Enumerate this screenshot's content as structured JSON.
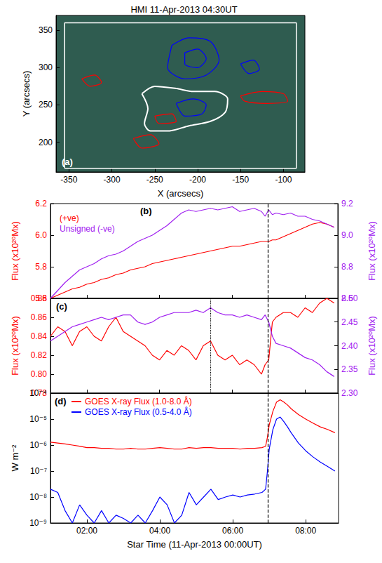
{
  "chart_data": [
    {
      "type": "contour",
      "title": "HMI 11-Apr-2013 04:30UT",
      "panel_label": "(a)",
      "xlabel": "X (arcsecs)",
      "ylabel": "Y (arcsecs)",
      "xlim": [
        -365,
        -75
      ],
      "xticks": [
        -350,
        -300,
        -250,
        -200,
        -150,
        -100
      ],
      "ylim": [
        160,
        370
      ],
      "yticks": [
        200,
        250,
        300,
        350
      ],
      "grid": false,
      "box": {
        "color": "#ffffff",
        "points": [
          [
            -355,
            165
          ],
          [
            -85,
            165
          ],
          [
            -85,
            360
          ],
          [
            -355,
            360
          ],
          [
            -355,
            165
          ]
        ]
      },
      "contours": [
        {
          "color": "#ffffff",
          "points": [
            [
              -265,
              265
            ],
            [
              -250,
              275
            ],
            [
              -225,
              272
            ],
            [
              -205,
              268
            ],
            [
              -180,
              268
            ],
            [
              -165,
              258
            ],
            [
              -168,
              240
            ],
            [
              -185,
              228
            ],
            [
              -210,
              222
            ],
            [
              -235,
              215
            ],
            [
              -255,
              215
            ],
            [
              -262,
              225
            ],
            [
              -258,
              245
            ],
            [
              -265,
              265
            ]
          ]
        },
        {
          "color": "#0000ff",
          "points": [
            [
              -230,
              330
            ],
            [
              -210,
              340
            ],
            [
              -185,
              335
            ],
            [
              -175,
              310
            ],
            [
              -190,
              290
            ],
            [
              -215,
              285
            ],
            [
              -235,
              300
            ],
            [
              -230,
              330
            ]
          ]
        },
        {
          "color": "#0000ff",
          "points": [
            [
              -215,
              320
            ],
            [
              -200,
              325
            ],
            [
              -190,
              312
            ],
            [
              -200,
              300
            ],
            [
              -215,
              305
            ],
            [
              -215,
              320
            ]
          ]
        },
        {
          "color": "#0000ff",
          "points": [
            [
              -225,
              252
            ],
            [
              -205,
              258
            ],
            [
              -190,
              250
            ],
            [
              -195,
              238
            ],
            [
              -215,
              235
            ],
            [
              -225,
              252
            ]
          ]
        },
        {
          "color": "#0000ff",
          "points": [
            [
              -150,
              305
            ],
            [
              -135,
              310
            ],
            [
              -128,
              298
            ],
            [
              -140,
              292
            ],
            [
              -150,
              305
            ]
          ]
        },
        {
          "color": "#ff0000",
          "points": [
            [
              -150,
              262
            ],
            [
              -125,
              268
            ],
            [
              -100,
              265
            ],
            [
              -95,
              255
            ],
            [
              -120,
              252
            ],
            [
              -145,
              255
            ],
            [
              -150,
              262
            ]
          ]
        },
        {
          "color": "#ff0000",
          "points": [
            [
              -335,
              285
            ],
            [
              -320,
              290
            ],
            [
              -312,
              280
            ],
            [
              -325,
              275
            ],
            [
              -335,
              285
            ]
          ]
        },
        {
          "color": "#ff0000",
          "points": [
            [
              -250,
              235
            ],
            [
              -230,
              238
            ],
            [
              -225,
              228
            ],
            [
              -245,
              225
            ],
            [
              -250,
              235
            ]
          ]
        },
        {
          "color": "#ff0000",
          "points": [
            [
              -275,
              205
            ],
            [
              -255,
              210
            ],
            [
              -245,
              198
            ],
            [
              -265,
              192
            ],
            [
              -275,
              205
            ]
          ]
        }
      ]
    },
    {
      "type": "line",
      "panel_label": "(b)",
      "legend": "upper left",
      "grid": false,
      "tick_labels": "y",
      "ylabel": "Flux (x10²⁰Mx)",
      "y2label": "Flux (x10²⁰Mx)",
      "xlim": [
        1.0,
        8.9
      ],
      "xticks": [
        {
          "value": 2,
          "label": "02:00"
        },
        {
          "value": 4,
          "label": "04:00"
        },
        {
          "value": 6,
          "label": "06:00"
        },
        {
          "value": 8,
          "label": "08:00"
        }
      ],
      "ylim": [
        5.6,
        6.2
      ],
      "yticks": [
        {
          "value": 5.6,
          "label": "5.6"
        },
        {
          "value": 5.8,
          "label": "5.8"
        },
        {
          "value": 6.0,
          "label": "6.0"
        },
        {
          "value": 6.2,
          "label": "6.2"
        }
      ],
      "y2lim": [
        8.6,
        9.2
      ],
      "y2ticks": [
        {
          "value": 8.6,
          "label": "8.6"
        },
        {
          "value": 8.8,
          "label": "8.8"
        },
        {
          "value": 9.0,
          "label": "9.0"
        },
        {
          "value": 9.2,
          "label": "9.2"
        }
      ],
      "markers": [
        {
          "x": 6.97,
          "line_style": "dashed"
        }
      ],
      "x": [
        1.0,
        1.2,
        1.4,
        1.6,
        1.8,
        2.0,
        2.2,
        2.4,
        2.6,
        2.8,
        3.0,
        3.2,
        3.4,
        3.6,
        3.8,
        4.0,
        4.2,
        4.4,
        4.6,
        4.8,
        5.0,
        5.2,
        5.4,
        5.6,
        5.8,
        6.0,
        6.2,
        6.4,
        6.6,
        6.8,
        6.9,
        7.0,
        7.1,
        7.2,
        7.4,
        7.6,
        7.8,
        8.0,
        8.2,
        8.4,
        8.6,
        8.8
      ],
      "series": [
        {
          "name": "(+ve)",
          "color": "#ff0000",
          "values": [
            5.6,
            5.62,
            5.64,
            5.66,
            5.67,
            5.69,
            5.7,
            5.72,
            5.73,
            5.75,
            5.76,
            5.78,
            5.79,
            5.8,
            5.82,
            5.83,
            5.84,
            5.85,
            5.86,
            5.87,
            5.88,
            5.89,
            5.9,
            5.91,
            5.92,
            5.93,
            5.93,
            5.94,
            5.95,
            5.96,
            5.96,
            5.96,
            5.97,
            5.97,
            5.99,
            6.01,
            6.03,
            6.05,
            6.07,
            6.08,
            6.07,
            6.05
          ]
        },
        {
          "name": "Unsigned (-ve)",
          "color": "#a020f0",
          "axis": "y2",
          "values": [
            8.6,
            8.65,
            8.7,
            8.74,
            8.78,
            8.8,
            8.82,
            8.85,
            8.87,
            8.88,
            8.9,
            8.93,
            8.96,
            8.98,
            9.0,
            9.03,
            9.06,
            9.1,
            9.14,
            9.16,
            9.15,
            9.16,
            9.17,
            9.16,
            9.17,
            9.18,
            9.15,
            9.16,
            9.17,
            9.15,
            9.12,
            9.16,
            9.13,
            9.14,
            9.13,
            9.14,
            9.12,
            9.12,
            9.1,
            9.09,
            9.07,
            9.05
          ]
        }
      ]
    },
    {
      "type": "line",
      "panel_label": "(c)",
      "grid": false,
      "tick_labels": "y",
      "ylabel": "Flux (x10²⁰Mx)",
      "y2label": "Flux (x10²⁰Mx)",
      "xlim": [
        1.0,
        8.9
      ],
      "xticks": [
        {
          "value": 2,
          "label": "02:00"
        },
        {
          "value": 4,
          "label": "04:00"
        },
        {
          "value": 6,
          "label": "06:00"
        },
        {
          "value": 8,
          "label": "08:00"
        }
      ],
      "ylim": [
        0.78,
        0.88
      ],
      "yticks": [
        0.78,
        {
          "value": 0.8,
          "label": "0.80"
        },
        0.82,
        0.84,
        0.86,
        0.88
      ],
      "y2lim": [
        2.3,
        2.5
      ],
      "y2ticks": [
        {
          "value": 2.3,
          "label": "2.30"
        },
        2.35,
        {
          "value": 2.4,
          "label": "2.40"
        },
        2.45,
        {
          "value": 2.5,
          "label": "2.50"
        }
      ],
      "markers": [
        {
          "x": 5.4,
          "line_style": "dotted"
        },
        {
          "x": 6.97,
          "line_style": "dashed"
        }
      ],
      "x": [
        1.0,
        1.2,
        1.4,
        1.6,
        1.8,
        2.0,
        2.2,
        2.4,
        2.6,
        2.8,
        3.0,
        3.2,
        3.4,
        3.6,
        3.8,
        4.0,
        4.2,
        4.4,
        4.6,
        4.8,
        5.0,
        5.2,
        5.4,
        5.6,
        5.8,
        6.0,
        6.2,
        6.4,
        6.6,
        6.8,
        6.9,
        7.0,
        7.1,
        7.2,
        7.4,
        7.6,
        7.8,
        8.0,
        8.2,
        8.4,
        8.6,
        8.8
      ],
      "series": [
        {
          "color": "#ff0000",
          "values": [
            0.84,
            0.85,
            0.845,
            0.83,
            0.845,
            0.85,
            0.84,
            0.835,
            0.85,
            0.86,
            0.845,
            0.84,
            0.835,
            0.83,
            0.82,
            0.815,
            0.825,
            0.82,
            0.83,
            0.825,
            0.815,
            0.83,
            0.835,
            0.82,
            0.815,
            0.82,
            0.81,
            0.815,
            0.81,
            0.8,
            0.81,
            0.815,
            0.855,
            0.86,
            0.865,
            0.865,
            0.86,
            0.87,
            0.865,
            0.875,
            0.88,
            0.875
          ]
        },
        {
          "color": "#a020f0",
          "axis": "y2",
          "values": [
            2.41,
            2.42,
            2.43,
            2.44,
            2.445,
            2.45,
            2.455,
            2.46,
            2.455,
            2.46,
            2.465,
            2.465,
            2.45,
            2.445,
            2.45,
            2.46,
            2.465,
            2.47,
            2.47,
            2.47,
            2.475,
            2.47,
            2.48,
            2.47,
            2.465,
            2.465,
            2.46,
            2.465,
            2.46,
            2.455,
            2.465,
            2.45,
            2.42,
            2.405,
            2.4,
            2.395,
            2.385,
            2.375,
            2.37,
            2.36,
            2.345,
            2.335
          ]
        }
      ]
    },
    {
      "type": "line",
      "panel_label": "(d)",
      "legend": "upper left",
      "grid": false,
      "log": "y",
      "xlabel": "Star Time (11-Apr-2013 00:00UT)",
      "ylabel": "W m⁻²",
      "xlim": [
        1.0,
        8.9
      ],
      "xticks": [
        {
          "value": 2,
          "label": "02:00"
        },
        {
          "value": 4,
          "label": "04:00"
        },
        {
          "value": 6,
          "label": "06:00"
        },
        {
          "value": 8,
          "label": "08:00"
        }
      ],
      "ylim": [
        1e-09,
        0.0001
      ],
      "yticks": [
        {
          "value": 1e-09,
          "label": "10⁻⁹"
        },
        {
          "value": 1e-08,
          "label": "10⁻⁸"
        },
        {
          "value": 1e-07,
          "label": "10⁻⁷"
        },
        {
          "value": 1e-06,
          "label": "10⁻⁶"
        },
        {
          "value": 1e-05,
          "label": "10⁻⁵"
        },
        {
          "value": 0.0001,
          "label": "10⁻⁴"
        }
      ],
      "markers": [
        {
          "x": 6.97,
          "line_style": "dashed"
        }
      ],
      "x": [
        1.0,
        1.2,
        1.4,
        1.6,
        1.8,
        2.0,
        2.2,
        2.4,
        2.6,
        2.8,
        3.0,
        3.2,
        3.4,
        3.6,
        3.8,
        4.0,
        4.2,
        4.4,
        4.6,
        4.8,
        5.0,
        5.2,
        5.4,
        5.6,
        5.8,
        6.0,
        6.2,
        6.4,
        6.6,
        6.8,
        6.9,
        6.95,
        7.0,
        7.1,
        7.2,
        7.3,
        7.4,
        7.5,
        7.6,
        7.8,
        8.0,
        8.2,
        8.4,
        8.6,
        8.8
      ],
      "series": [
        {
          "name": "GOES X-ray Flux (1.0-8.0 Å)",
          "color": "#ff0000",
          "values": [
            1.3e-06,
            1.2e-06,
            1.1e-06,
            1e-06,
            9e-07,
            8e-07,
            8e-07,
            7.5e-07,
            7.5e-07,
            7e-07,
            7e-07,
            7.5e-07,
            7e-07,
            7e-07,
            7.5e-07,
            8e-07,
            7.5e-07,
            7e-07,
            7e-07,
            8e-07,
            7.5e-07,
            8e-07,
            8e-07,
            7.5e-07,
            7.5e-07,
            7.5e-07,
            7e-07,
            7.5e-07,
            7.5e-07,
            8e-07,
            9e-07,
            2e-06,
            6e-06,
            2e-05,
            4.5e-05,
            5.5e-05,
            4.5e-05,
            3.5e-05,
            2.5e-05,
            1.5e-05,
            1e-05,
            7e-06,
            5e-06,
            4e-06,
            3e-06
          ]
        },
        {
          "name": "GOES X-ray Flux (0.5-4.0 Å)",
          "color": "#0000ff",
          "values": [
            2e-08,
            1.5e-08,
            3e-09,
            1e-09,
            5e-09,
            2e-09,
            1e-09,
            3e-09,
            1e-09,
            2e-09,
            1.5e-09,
            1e-09,
            2e-09,
            1e-09,
            3e-09,
            1e-08,
            5e-09,
            1e-09,
            2e-09,
            1.5e-08,
            5e-09,
            1e-08,
            2e-08,
            8e-09,
            1e-08,
            1.2e-08,
            1e-08,
            1.2e-08,
            1.3e-08,
            1.5e-08,
            2e-08,
            1e-07,
            7e-07,
            4e-06,
            1e-05,
            1.2e-05,
            8e-06,
            5e-06,
            3e-06,
            1.2e-06,
            6e-07,
            3.5e-07,
            2.2e-07,
            1.5e-07,
            1e-07
          ]
        }
      ]
    }
  ]
}
